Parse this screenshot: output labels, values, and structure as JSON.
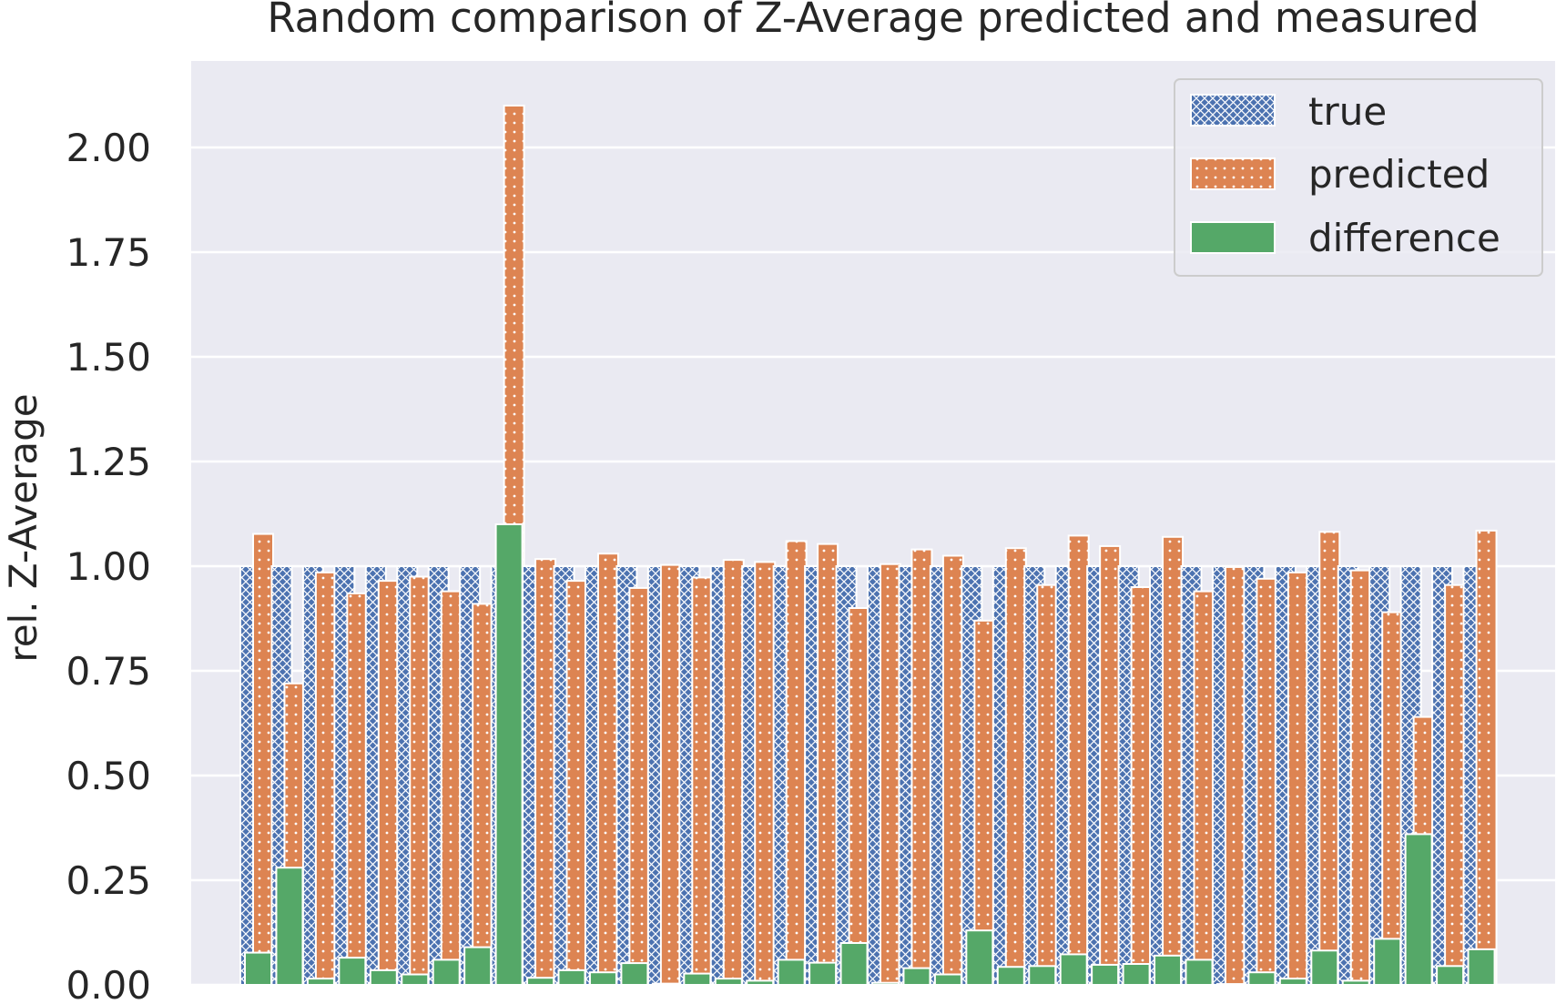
{
  "chart_data": {
    "type": "bar",
    "title": "Random comparison of Z-Average predicted and measured",
    "xlabel": "",
    "ylabel": "rel. Z-Average",
    "ylim": [
      0,
      2.2
    ],
    "yticks": [
      0.0,
      0.25,
      0.5,
      0.75,
      1.0,
      1.25,
      1.5,
      1.75,
      2.0
    ],
    "ytick_labels": [
      "0.00",
      "0.25",
      "0.50",
      "0.75",
      "1.00",
      "1.25",
      "1.50",
      "1.75",
      "2.00"
    ],
    "grid": true,
    "legend_position": "top-right",
    "series": [
      {
        "name": "true",
        "color": "#4c72b0",
        "pattern": "crosshatch",
        "values": [
          1.0,
          1.0,
          1.0,
          1.0,
          1.0,
          1.0,
          1.0,
          1.0,
          1.0,
          1.0,
          1.0,
          1.0,
          1.0,
          1.0,
          1.0,
          1.0,
          1.0,
          1.0,
          1.0,
          1.0,
          1.0,
          1.0,
          1.0,
          1.0,
          1.0,
          1.0,
          1.0,
          1.0,
          1.0,
          1.0,
          1.0,
          1.0,
          1.0,
          1.0,
          1.0,
          1.0,
          1.0,
          1.0,
          1.0,
          1.0
        ]
      },
      {
        "name": "predicted",
        "color": "#dd8452",
        "pattern": "dots",
        "values": [
          1.077,
          0.72,
          0.985,
          0.935,
          0.965,
          0.975,
          0.94,
          0.91,
          2.1,
          1.017,
          0.965,
          1.03,
          0.948,
          1.003,
          0.973,
          1.015,
          1.01,
          1.06,
          1.053,
          0.9,
          1.005,
          1.04,
          1.025,
          0.87,
          1.043,
          0.955,
          1.073,
          1.048,
          0.95,
          1.07,
          0.94,
          0.998,
          0.97,
          0.985,
          1.082,
          0.99,
          0.89,
          0.64,
          0.955,
          1.085
        ]
      },
      {
        "name": "difference",
        "color": "#55a868",
        "pattern": "solid",
        "values": [
          0.077,
          0.28,
          0.015,
          0.065,
          0.035,
          0.025,
          0.06,
          0.09,
          1.1,
          0.017,
          0.035,
          0.03,
          0.052,
          0.003,
          0.027,
          0.015,
          0.01,
          0.06,
          0.053,
          0.1,
          0.005,
          0.04,
          0.025,
          0.13,
          0.043,
          0.045,
          0.073,
          0.048,
          0.05,
          0.07,
          0.06,
          0.002,
          0.03,
          0.015,
          0.082,
          0.01,
          0.11,
          0.36,
          0.045,
          0.085
        ]
      }
    ]
  }
}
